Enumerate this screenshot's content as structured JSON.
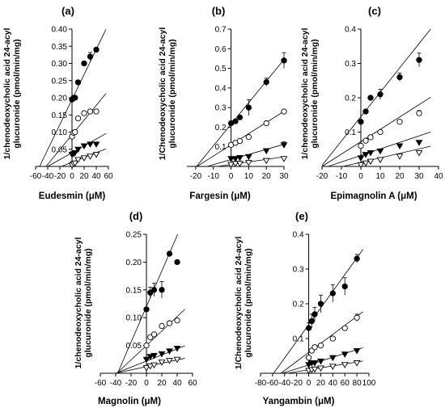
{
  "colors": {
    "ink": "#000000",
    "background": "#ffffff"
  },
  "chart_data": [
    {
      "type": "scatter",
      "panel_label": "(a)",
      "xlabel": "Eudesmin (μM)",
      "ylabel": [
        "1/chenodeoxycholic acid 24-acyl",
        "glucuronide (pmol/min/mg)"
      ],
      "xlim": [
        -60,
        60
      ],
      "ylim": [
        0,
        0.4
      ],
      "xticks": [
        -60,
        -40,
        -20,
        0,
        20,
        40,
        60
      ],
      "yticks": [
        0.05,
        0.1,
        0.15,
        0.2,
        0.25,
        0.3,
        0.35,
        0.4
      ],
      "ytick_labels": [
        "0.05",
        "0.10",
        "0.15",
        "0.20",
        "0.25",
        "0.30",
        "0.35",
        "0.40"
      ],
      "marker_order": [
        "filled-circle",
        "open-circle",
        "filled-triangle-down",
        "open-triangle-down"
      ],
      "series": [
        {
          "marker": "filled-circle",
          "x": [
            0,
            2.5,
            5,
            10,
            20,
            30,
            40
          ],
          "y": [
            0.195,
            0.2,
            0.2,
            0.245,
            0.3,
            0.32,
            0.34
          ],
          "err": [
            0,
            0,
            0,
            0,
            0,
            0.012,
            0
          ]
        },
        {
          "marker": "open-circle",
          "x": [
            0,
            2.5,
            5,
            10,
            20,
            30,
            40
          ],
          "y": [
            0.087,
            0.098,
            0.1,
            0.14,
            0.155,
            0.16,
            0.16
          ]
        },
        {
          "marker": "filled-triangle-down",
          "x": [
            0,
            2.5,
            5,
            10,
            20,
            30,
            40
          ],
          "y": [
            0.035,
            0.037,
            0.04,
            0.05,
            0.06,
            0.065,
            0.065
          ]
        },
        {
          "marker": "open-triangle-down",
          "x": [
            0,
            2.5,
            5,
            10,
            20,
            30,
            40
          ],
          "y": [
            0.004,
            0.008,
            0.01,
            0.02,
            0.025,
            0.03,
            0.035
          ]
        }
      ],
      "lines": [
        {
          "slope": 0.00365,
          "intercept": 0.195,
          "xmax": 56
        },
        {
          "slope": 0.00215,
          "intercept": 0.092,
          "xmax": 56
        },
        {
          "slope": 0.001,
          "intercept": 0.04,
          "xmax": 56
        },
        {
          "slope": 0.0007,
          "intercept": 0.012,
          "xmax": 56
        }
      ]
    },
    {
      "type": "scatter",
      "panel_label": "(b)",
      "xlabel": "Fargesin (μM)",
      "ylabel": [
        "1/Chenodeoxycholic acid 24-acyl",
        "glucuronide (pmol/min/mg)"
      ],
      "xlim": [
        -25,
        30
      ],
      "ylim": [
        0,
        0.7
      ],
      "xticks": [
        -20,
        -10,
        0,
        10,
        20,
        30
      ],
      "yticks": [
        0.1,
        0.2,
        0.3,
        0.4,
        0.5,
        0.6,
        0.7
      ],
      "ytick_labels": [
        "0.1",
        "0.2",
        "0.3",
        "0.4",
        "0.5",
        "0.6",
        "0.7"
      ],
      "marker_order": [
        "filled-circle",
        "open-circle",
        "filled-triangle-down",
        "open-triangle-down"
      ],
      "series": [
        {
          "marker": "filled-circle",
          "x": [
            0,
            2.5,
            5,
            10,
            20,
            30
          ],
          "y": [
            0.22,
            0.23,
            0.25,
            0.3,
            0.43,
            0.54
          ],
          "err": [
            0,
            0,
            0,
            0.04,
            0.02,
            0.04
          ]
        },
        {
          "marker": "open-circle",
          "x": [
            0,
            2.5,
            5,
            10,
            20,
            30
          ],
          "y": [
            0.11,
            0.12,
            0.13,
            0.15,
            0.22,
            0.28
          ]
        },
        {
          "marker": "filled-triangle-down",
          "x": [
            0,
            2.5,
            5,
            10,
            20,
            30
          ],
          "y": [
            0.04,
            0.04,
            0.045,
            0.05,
            0.08,
            0.11
          ],
          "err": [
            0,
            0,
            0,
            0,
            0,
            0.015
          ]
        },
        {
          "marker": "open-triangle-down",
          "x": [
            0,
            2.5,
            5,
            10,
            20,
            30
          ],
          "y": [
            0.01,
            0.015,
            0.015,
            0.02,
            0.03,
            0.04
          ]
        }
      ],
      "lines": [
        {
          "slope": 0.011,
          "intercept": 0.215,
          "xmax": 30
        },
        {
          "slope": 0.0057,
          "intercept": 0.11,
          "xmax": 30
        },
        {
          "slope": 0.0026,
          "intercept": 0.035,
          "xmax": 30
        },
        {
          "slope": 0.0013,
          "intercept": 0.01,
          "xmax": 30
        }
      ]
    },
    {
      "type": "scatter",
      "panel_label": "(c)",
      "xlabel": "Epimagnolin A (μM)",
      "ylabel": [
        "1/chenodeoxycholic acid 24-acyl",
        "glucuronide (pmol/min/mg)"
      ],
      "xlim": [
        -20,
        40
      ],
      "ylim": [
        0,
        0.4
      ],
      "xticks": [
        -20,
        -10,
        0,
        10,
        20,
        30,
        40
      ],
      "yticks": [
        0.1,
        0.2,
        0.3,
        0.4
      ],
      "ytick_labels": [
        "0.1",
        "0.2",
        "0.3",
        "0.4"
      ],
      "marker_order": [
        "filled-circle",
        "open-circle",
        "filled-triangle-down",
        "open-triangle-down"
      ],
      "series": [
        {
          "marker": "filled-circle",
          "x": [
            0,
            2.5,
            5,
            10,
            20,
            30
          ],
          "y": [
            0.13,
            0.16,
            0.2,
            0.21,
            0.26,
            0.31
          ],
          "err": [
            0,
            0,
            0,
            0.015,
            0.012,
            0.02
          ]
        },
        {
          "marker": "open-circle",
          "x": [
            0,
            2.5,
            5,
            10,
            20,
            30
          ],
          "y": [
            0.06,
            0.075,
            0.085,
            0.1,
            0.13,
            0.155
          ],
          "err": [
            0,
            0,
            0,
            0,
            0,
            0.008
          ]
        },
        {
          "marker": "filled-triangle-down",
          "x": [
            0,
            2.5,
            5,
            10,
            20,
            30
          ],
          "y": [
            0.025,
            0.035,
            0.04,
            0.045,
            0.06,
            0.07
          ]
        },
        {
          "marker": "open-triangle-down",
          "x": [
            0,
            2.5,
            5,
            10,
            20,
            30
          ],
          "y": [
            0.005,
            0.01,
            0.015,
            0.02,
            0.03,
            0.04
          ]
        }
      ],
      "lines": [
        {
          "slope": 0.0071,
          "intercept": 0.145,
          "xmax": 36
        },
        {
          "slope": 0.0036,
          "intercept": 0.072,
          "xmax": 36
        },
        {
          "slope": 0.0019,
          "intercept": 0.032,
          "xmax": 36
        },
        {
          "slope": 0.0013,
          "intercept": 0.012,
          "xmax": 36
        }
      ]
    },
    {
      "type": "scatter",
      "panel_label": "(d)",
      "xlabel": "Magnolin (μM)",
      "ylabel": [
        "1/chenodeoxycholic acid 24-acyl",
        "glucuronide (pmol/min/mg)"
      ],
      "xlim": [
        -60,
        60
      ],
      "ylim": [
        0,
        0.25
      ],
      "xticks": [
        -60,
        -40,
        -20,
        0,
        20,
        40,
        60
      ],
      "yticks": [
        0.05,
        0.1,
        0.15,
        0.2,
        0.25
      ],
      "ytick_labels": [
        "0.05",
        "0.10",
        "0.15",
        "0.20",
        "0.25"
      ],
      "marker_order": [
        "filled-circle",
        "open-circle",
        "filled-triangle-down",
        "open-triangle-down"
      ],
      "series": [
        {
          "marker": "filled-circle",
          "x": [
            0,
            5,
            10,
            20,
            30,
            40
          ],
          "y": [
            0.115,
            0.145,
            0.15,
            0.15,
            0.215,
            0.2
          ],
          "err": [
            0,
            0.01,
            0.012,
            0.015,
            0,
            0
          ]
        },
        {
          "marker": "open-circle",
          "x": [
            0,
            5,
            10,
            20,
            30,
            40
          ],
          "y": [
            0.05,
            0.065,
            0.07,
            0.085,
            0.09,
            0.095
          ]
        },
        {
          "marker": "filled-triangle-down",
          "x": [
            0,
            5,
            10,
            20,
            30,
            40
          ],
          "y": [
            0.025,
            0.03,
            0.032,
            0.035,
            0.04,
            0.045
          ]
        },
        {
          "marker": "open-triangle-down",
          "x": [
            0,
            5,
            10,
            20,
            30,
            40
          ],
          "y": [
            0.01,
            0.013,
            0.015,
            0.02,
            0.023,
            0.025
          ]
        }
      ],
      "lines": [
        {
          "slope": 0.0032,
          "intercept": 0.12,
          "xmax": 50
        },
        {
          "slope": 0.0013,
          "intercept": 0.05,
          "xmax": 50
        },
        {
          "slope": 0.00055,
          "intercept": 0.022,
          "xmax": 50
        },
        {
          "slope": 0.0003,
          "intercept": 0.012,
          "xmax": 50
        }
      ]
    },
    {
      "type": "scatter",
      "panel_label": "(e)",
      "xlabel": "Yangambin  (μM)",
      "ylabel": [
        "1/Chenodeoxycholic acid 24-acyl",
        "glucuronide (pmol/min/mg)"
      ],
      "xlim": [
        -80,
        100
      ],
      "ylim": [
        0,
        0.4
      ],
      "xticks": [
        -80,
        -60,
        -40,
        -20,
        0,
        20,
        40,
        60,
        80,
        100
      ],
      "yticks": [
        0.1,
        0.2,
        0.3,
        0.4
      ],
      "ytick_labels": [
        "0.1",
        "0.2",
        "0.3",
        "0.4"
      ],
      "marker_order": [
        "filled-circle",
        "open-circle",
        "filled-triangle-down",
        "open-triangle-down"
      ],
      "series": [
        {
          "marker": "filled-circle",
          "x": [
            0,
            5,
            10,
            20,
            40,
            60,
            80
          ],
          "y": [
            0.13,
            0.15,
            0.17,
            0.2,
            0.23,
            0.25,
            0.33
          ],
          "err": [
            0.015,
            0.02,
            0.02,
            0.025,
            0.025,
            0.025,
            0.012
          ]
        },
        {
          "marker": "open-circle",
          "x": [
            0,
            5,
            10,
            20,
            40,
            60,
            80
          ],
          "y": [
            0.045,
            0.065,
            0.075,
            0.08,
            0.1,
            0.13,
            0.16
          ],
          "err": [
            0,
            0,
            0,
            0,
            0,
            0,
            0.01
          ]
        },
        {
          "marker": "filled-triangle-down",
          "x": [
            0,
            5,
            10,
            20,
            40,
            60,
            80
          ],
          "y": [
            0.025,
            0.03,
            0.03,
            0.035,
            0.045,
            0.055,
            0.065
          ]
        },
        {
          "marker": "open-triangle-down",
          "x": [
            0,
            5,
            10,
            20,
            40,
            60,
            80
          ],
          "y": [
            0.008,
            0.01,
            0.012,
            0.015,
            0.02,
            0.025,
            0.03
          ]
        }
      ],
      "lines": [
        {
          "slope": 0.0024,
          "intercept": 0.14,
          "xmax": 90
        },
        {
          "slope": 0.0013,
          "intercept": 0.06,
          "xmax": 90
        },
        {
          "slope": 0.00055,
          "intercept": 0.024,
          "xmax": 90
        },
        {
          "slope": 0.00028,
          "intercept": 0.01,
          "xmax": 90
        }
      ]
    }
  ]
}
